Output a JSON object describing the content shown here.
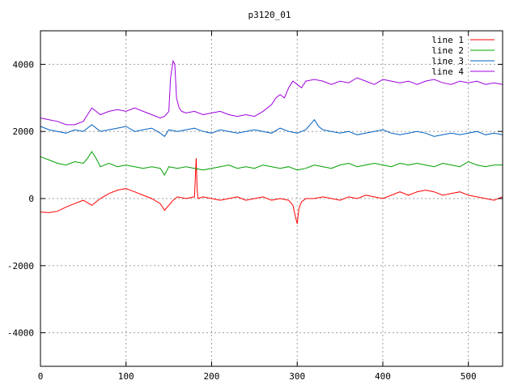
{
  "chart_data": {
    "type": "line",
    "title": "p3120_01",
    "xlabel": "",
    "ylabel": "",
    "xlim": [
      0,
      540
    ],
    "ylim": [
      -5000,
      5000
    ],
    "xticks": [
      0,
      100,
      200,
      300,
      400,
      500
    ],
    "yticks": [
      -4000,
      -2000,
      0,
      2000,
      4000
    ],
    "grid": true,
    "legend_position": "top-right",
    "series": [
      {
        "name": "line 1",
        "color": "#ff0000",
        "x": [
          0,
          10,
          20,
          30,
          40,
          50,
          60,
          70,
          80,
          90,
          100,
          110,
          120,
          130,
          140,
          145,
          150,
          155,
          160,
          170,
          180,
          182,
          183,
          184,
          190,
          200,
          210,
          220,
          230,
          240,
          250,
          260,
          270,
          280,
          290,
          295,
          298,
          300,
          302,
          305,
          310,
          320,
          330,
          340,
          350,
          360,
          370,
          380,
          390,
          400,
          410,
          420,
          430,
          440,
          450,
          460,
          470,
          480,
          490,
          500,
          510,
          520,
          530,
          540
        ],
        "y": [
          -400,
          -420,
          -380,
          -250,
          -150,
          -50,
          -200,
          0,
          150,
          250,
          300,
          200,
          100,
          0,
          -150,
          -350,
          -200,
          -50,
          50,
          0,
          50,
          1200,
          300,
          0,
          50,
          0,
          -50,
          0,
          50,
          -50,
          0,
          50,
          -50,
          0,
          -50,
          -200,
          -550,
          -750,
          -300,
          -100,
          0,
          0,
          50,
          0,
          -50,
          50,
          0,
          100,
          50,
          0,
          100,
          200,
          100,
          200,
          250,
          200,
          100,
          150,
          200,
          100,
          50,
          0,
          -50,
          50
        ]
      },
      {
        "name": "line 2",
        "color": "#00a000",
        "x": [
          0,
          10,
          20,
          30,
          40,
          50,
          55,
          60,
          65,
          70,
          80,
          90,
          100,
          110,
          120,
          130,
          140,
          145,
          150,
          160,
          170,
          180,
          190,
          200,
          210,
          220,
          230,
          240,
          250,
          260,
          270,
          280,
          290,
          300,
          310,
          320,
          330,
          340,
          350,
          360,
          370,
          380,
          390,
          400,
          410,
          420,
          430,
          440,
          450,
          460,
          470,
          480,
          490,
          500,
          510,
          520,
          530,
          540
        ],
        "y": [
          1250,
          1150,
          1050,
          1000,
          1100,
          1050,
          1200,
          1400,
          1200,
          950,
          1050,
          950,
          1000,
          950,
          900,
          950,
          900,
          700,
          950,
          900,
          950,
          900,
          850,
          900,
          950,
          1000,
          900,
          950,
          900,
          1000,
          950,
          900,
          950,
          850,
          900,
          1000,
          950,
          900,
          1000,
          1050,
          950,
          1000,
          1050,
          1000,
          950,
          1050,
          1000,
          1050,
          1000,
          950,
          1050,
          1000,
          950,
          1100,
          1000,
          950,
          1000,
          1000
        ]
      },
      {
        "name": "line 3",
        "color": "#0060c0",
        "x": [
          0,
          10,
          20,
          30,
          40,
          50,
          60,
          70,
          80,
          90,
          100,
          110,
          120,
          130,
          140,
          145,
          150,
          160,
          170,
          180,
          190,
          200,
          210,
          220,
          230,
          240,
          250,
          260,
          270,
          280,
          290,
          300,
          310,
          315,
          320,
          325,
          330,
          340,
          350,
          360,
          370,
          380,
          390,
          400,
          410,
          420,
          430,
          440,
          450,
          460,
          470,
          480,
          490,
          500,
          510,
          520,
          530,
          540
        ],
        "y": [
          2150,
          2050,
          2000,
          1950,
          2050,
          2000,
          2200,
          2000,
          2050,
          2100,
          2150,
          2000,
          2050,
          2100,
          1950,
          1850,
          2050,
          2000,
          2050,
          2100,
          2000,
          1950,
          2050,
          2000,
          1950,
          2000,
          2050,
          2000,
          1950,
          2100,
          2000,
          1950,
          2050,
          2200,
          2350,
          2150,
          2050,
          2000,
          1950,
          2000,
          1900,
          1950,
          2000,
          2050,
          1950,
          1900,
          1950,
          2000,
          1950,
          1850,
          1900,
          1950,
          1900,
          1950,
          2000,
          1900,
          1950,
          1900
        ]
      },
      {
        "name": "line 4",
        "color": "#a000e0",
        "x": [
          0,
          10,
          20,
          30,
          40,
          50,
          55,
          60,
          65,
          70,
          80,
          90,
          100,
          110,
          120,
          130,
          140,
          145,
          150,
          152,
          155,
          157,
          159,
          162,
          165,
          170,
          180,
          190,
          200,
          210,
          220,
          230,
          240,
          250,
          260,
          270,
          275,
          280,
          285,
          290,
          295,
          300,
          305,
          310,
          320,
          330,
          340,
          350,
          360,
          370,
          380,
          390,
          400,
          410,
          420,
          430,
          440,
          450,
          460,
          470,
          480,
          490,
          500,
          510,
          520,
          530,
          540
        ],
        "y": [
          2400,
          2350,
          2300,
          2200,
          2200,
          2300,
          2500,
          2700,
          2600,
          2500,
          2600,
          2650,
          2600,
          2700,
          2600,
          2500,
          2400,
          2450,
          2600,
          3600,
          4100,
          4000,
          3000,
          2700,
          2600,
          2550,
          2600,
          2500,
          2550,
          2600,
          2500,
          2450,
          2500,
          2450,
          2600,
          2800,
          3000,
          3100,
          3000,
          3300,
          3500,
          3400,
          3300,
          3500,
          3550,
          3500,
          3400,
          3500,
          3450,
          3600,
          3500,
          3400,
          3550,
          3500,
          3450,
          3500,
          3400,
          3500,
          3550,
          3450,
          3400,
          3500,
          3450,
          3500,
          3400,
          3450,
          3400
        ]
      }
    ]
  }
}
